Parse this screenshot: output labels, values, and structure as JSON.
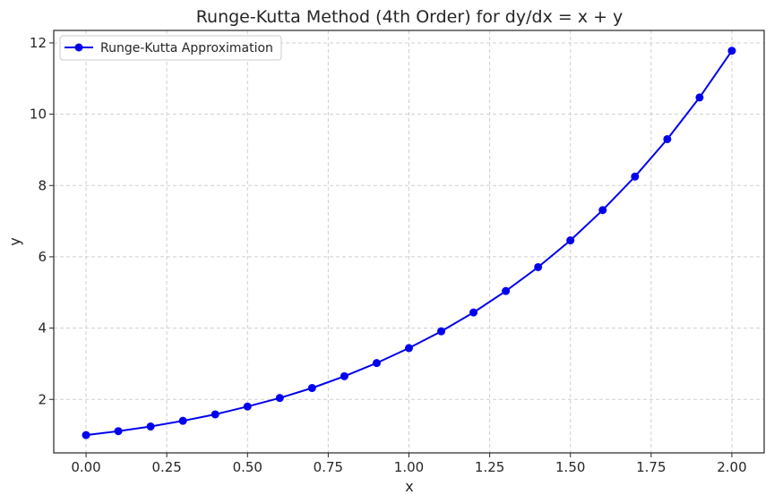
{
  "chart_data": {
    "type": "line",
    "title": "Runge-Kutta Method (4th Order) for dy/dx = x + y",
    "xlabel": "x",
    "ylabel": "y",
    "xlim": [
      -0.1,
      2.1
    ],
    "ylim": [
      0.5,
      12.35
    ],
    "xticks": [
      "0.00",
      "0.25",
      "0.50",
      "0.75",
      "1.00",
      "1.25",
      "1.50",
      "1.75",
      "2.00"
    ],
    "xtick_values": [
      0.0,
      0.25,
      0.5,
      0.75,
      1.0,
      1.25,
      1.5,
      1.75,
      2.0
    ],
    "yticks": [
      "2",
      "4",
      "6",
      "8",
      "10",
      "12"
    ],
    "ytick_values": [
      2,
      4,
      6,
      8,
      10,
      12
    ],
    "grid": true,
    "legend_position": "top-left",
    "series": [
      {
        "name": "Runge-Kutta Approximation",
        "color": "#0000ee",
        "marker": "circle",
        "x": [
          0.0,
          0.1,
          0.2,
          0.3,
          0.4,
          0.5,
          0.6,
          0.7,
          0.8,
          0.9,
          1.0,
          1.1,
          1.2,
          1.3,
          1.4,
          1.5,
          1.6,
          1.7,
          1.8,
          1.9,
          2.0
        ],
        "y": [
          1.0,
          1.11,
          1.24,
          1.4,
          1.58,
          1.8,
          2.04,
          2.32,
          2.65,
          3.02,
          3.44,
          3.91,
          4.44,
          5.04,
          5.71,
          6.46,
          7.31,
          8.25,
          9.3,
          10.47,
          11.78
        ]
      }
    ]
  }
}
